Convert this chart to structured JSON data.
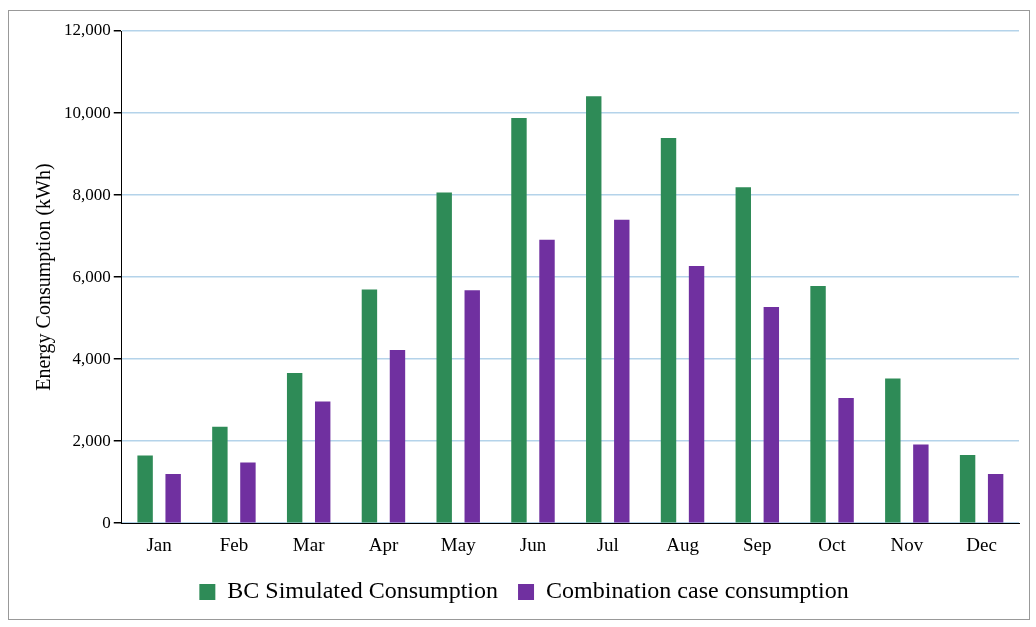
{
  "chart_data": {
    "type": "bar",
    "ylabel": "Energy Consumption (kWh)",
    "categories": [
      "Jan",
      "Feb",
      "Mar",
      "Apr",
      "May",
      "Jun",
      "Jul",
      "Aug",
      "Sep",
      "Oct",
      "Nov",
      "Dec"
    ],
    "series": [
      {
        "name": "BC Simulated Consumption",
        "color": "#2e8b57",
        "values": [
          1650,
          2350,
          3660,
          5700,
          8060,
          9880,
          10410,
          9390,
          8190,
          5780,
          3530,
          1660
        ]
      },
      {
        "name": "Combination case consumption",
        "color": "#7030a0",
        "values": [
          1200,
          1480,
          2970,
          4220,
          5680,
          6910,
          7400,
          6270,
          5270,
          3050,
          1920,
          1200
        ]
      }
    ],
    "ylim": [
      0,
      12000
    ],
    "yticks": [
      {
        "value": 0,
        "label": "0"
      },
      {
        "value": 2000,
        "label": "2,000"
      },
      {
        "value": 4000,
        "label": "4,000"
      },
      {
        "value": 6000,
        "label": "6,000"
      },
      {
        "value": 8000,
        "label": "8,000"
      },
      {
        "value": 10000,
        "label": "10,000"
      },
      {
        "value": 12000,
        "label": "12,000"
      }
    ],
    "grid": "y",
    "legend": "bottom"
  }
}
